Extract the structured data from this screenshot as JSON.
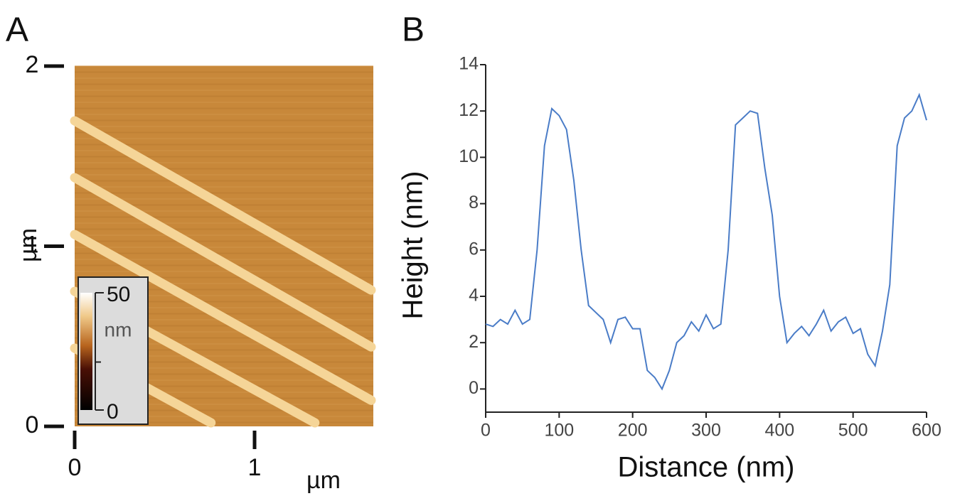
{
  "chart_data": [
    {
      "type": "image",
      "title": "A",
      "xlabel": "µm",
      "ylabel": "µm",
      "xlim": [
        0,
        1.66
      ],
      "ylim": [
        0,
        2
      ],
      "xticks": [
        0,
        1
      ],
      "yticks": [
        0,
        1,
        2
      ],
      "colorbar": {
        "lim": [
          0,
          50
        ],
        "ticks": [
          0,
          50
        ],
        "label": "nm"
      }
    },
    {
      "type": "line",
      "title": "B",
      "xlabel": "Distance (nm)",
      "ylabel": "Height (nm)",
      "color": "#4a7cc7",
      "x": [
        0,
        10,
        20,
        30,
        40,
        50,
        60,
        70,
        80,
        90,
        100,
        110,
        120,
        130,
        140,
        150,
        160,
        170,
        180,
        190,
        200,
        210,
        220,
        230,
        240,
        250,
        260,
        270,
        280,
        290,
        300,
        310,
        320,
        330,
        340,
        350,
        360,
        370,
        380,
        390,
        400,
        410,
        420,
        430,
        440,
        450,
        460,
        470,
        480,
        490,
        500,
        510,
        520,
        530,
        540,
        550,
        560,
        570,
        580,
        590,
        600
      ],
      "values": [
        2.8,
        2.7,
        3.0,
        2.8,
        3.4,
        2.8,
        3.0,
        6,
        10.5,
        12.1,
        11.8,
        11.2,
        9,
        6,
        3.6,
        3.3,
        3.0,
        2.0,
        3.0,
        3.1,
        2.6,
        2.6,
        0.8,
        0.5,
        0.0,
        0.8,
        2.0,
        2.3,
        2.9,
        2.5,
        3.2,
        2.6,
        2.8,
        6,
        11.4,
        11.7,
        12.0,
        11.9,
        9.5,
        7.5,
        4,
        2.0,
        2.4,
        2.7,
        2.3,
        2.8,
        3.4,
        2.5,
        2.9,
        3.1,
        2.4,
        2.6,
        1.5,
        1.0,
        2.5,
        4.5,
        10.5,
        11.7,
        12.0,
        12.7,
        11.6
      ],
      "xlim": [
        0,
        600
      ],
      "ylim": [
        -1,
        14
      ],
      "xticks": [
        0,
        100,
        200,
        300,
        400,
        500,
        600
      ],
      "yticks": [
        0,
        2,
        4,
        6,
        8,
        10,
        12,
        14
      ]
    }
  ]
}
